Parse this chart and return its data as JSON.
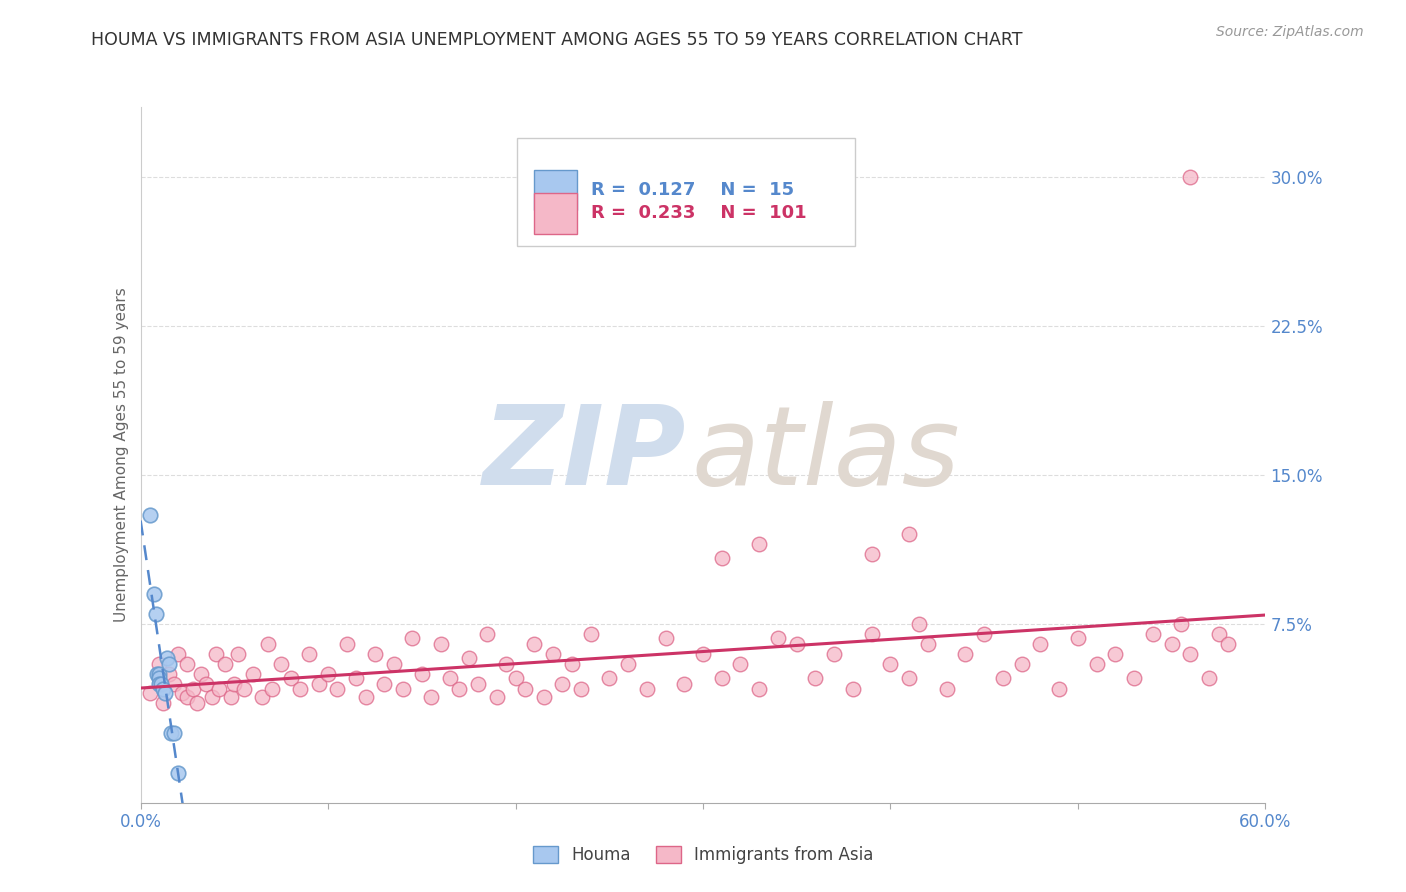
{
  "title": "HOUMA VS IMMIGRANTS FROM ASIA UNEMPLOYMENT AMONG AGES 55 TO 59 YEARS CORRELATION CHART",
  "source_text": "Source: ZipAtlas.com",
  "ylabel": "Unemployment Among Ages 55 to 59 years",
  "xlim": [
    0.0,
    0.6
  ],
  "ylim": [
    -0.015,
    0.335
  ],
  "xticks": [
    0.0,
    0.1,
    0.2,
    0.3,
    0.4,
    0.5,
    0.6
  ],
  "xticklabels": [
    "0.0%",
    "",
    "",
    "",
    "",
    "",
    "60.0%"
  ],
  "ytick_positions": [
    0.0,
    0.075,
    0.15,
    0.225,
    0.3
  ],
  "ytick_labels": [
    "",
    "7.5%",
    "15.0%",
    "22.5%",
    "30.0%"
  ],
  "houma_color": "#a8c8ef",
  "houma_edge_color": "#6699cc",
  "asia_color": "#f5b8c8",
  "asia_edge_color": "#dd6688",
  "houma_trend_color": "#5588cc",
  "asia_trend_color": "#cc3366",
  "grid_color": "#dddddd",
  "background_color": "#ffffff",
  "legend_R_houma": "R =  0.127",
  "legend_N_houma": "N =  15",
  "legend_R_asia": "R =  0.233",
  "legend_N_asia": "N =  101",
  "legend_label_houma": "Houma",
  "legend_label_asia": "Immigrants from Asia",
  "houma_x": [
    0.005,
    0.007,
    0.008,
    0.009,
    0.01,
    0.01,
    0.01,
    0.011,
    0.012,
    0.013,
    0.014,
    0.015,
    0.016,
    0.018,
    0.02
  ],
  "houma_y": [
    0.13,
    0.09,
    0.08,
    0.05,
    0.05,
    0.048,
    0.045,
    0.045,
    0.042,
    0.04,
    0.058,
    0.055,
    0.02,
    0.02,
    0.0
  ],
  "asia_x": [
    0.005,
    0.01,
    0.012,
    0.015,
    0.018,
    0.02,
    0.022,
    0.025,
    0.025,
    0.028,
    0.03,
    0.032,
    0.035,
    0.038,
    0.04,
    0.042,
    0.045,
    0.048,
    0.05,
    0.052,
    0.055,
    0.06,
    0.065,
    0.068,
    0.07,
    0.075,
    0.08,
    0.085,
    0.09,
    0.095,
    0.1,
    0.105,
    0.11,
    0.115,
    0.12,
    0.125,
    0.13,
    0.135,
    0.14,
    0.145,
    0.15,
    0.155,
    0.16,
    0.165,
    0.17,
    0.175,
    0.18,
    0.185,
    0.19,
    0.195,
    0.2,
    0.205,
    0.21,
    0.215,
    0.22,
    0.225,
    0.23,
    0.235,
    0.24,
    0.25,
    0.26,
    0.27,
    0.28,
    0.29,
    0.3,
    0.31,
    0.32,
    0.33,
    0.34,
    0.35,
    0.36,
    0.37,
    0.38,
    0.39,
    0.4,
    0.41,
    0.42,
    0.43,
    0.44,
    0.45,
    0.46,
    0.47,
    0.48,
    0.49,
    0.5,
    0.51,
    0.52,
    0.53,
    0.54,
    0.55,
    0.555,
    0.56,
    0.57,
    0.575,
    0.58,
    0.39,
    0.41,
    0.31,
    0.33,
    0.415,
    0.56
  ],
  "asia_y": [
    0.04,
    0.055,
    0.035,
    0.05,
    0.045,
    0.06,
    0.04,
    0.038,
    0.055,
    0.042,
    0.035,
    0.05,
    0.045,
    0.038,
    0.06,
    0.042,
    0.055,
    0.038,
    0.045,
    0.06,
    0.042,
    0.05,
    0.038,
    0.065,
    0.042,
    0.055,
    0.048,
    0.042,
    0.06,
    0.045,
    0.05,
    0.042,
    0.065,
    0.048,
    0.038,
    0.06,
    0.045,
    0.055,
    0.042,
    0.068,
    0.05,
    0.038,
    0.065,
    0.048,
    0.042,
    0.058,
    0.045,
    0.07,
    0.038,
    0.055,
    0.048,
    0.042,
    0.065,
    0.038,
    0.06,
    0.045,
    0.055,
    0.042,
    0.07,
    0.048,
    0.055,
    0.042,
    0.068,
    0.045,
    0.06,
    0.048,
    0.055,
    0.042,
    0.068,
    0.065,
    0.048,
    0.06,
    0.042,
    0.07,
    0.055,
    0.048,
    0.065,
    0.042,
    0.06,
    0.07,
    0.048,
    0.055,
    0.065,
    0.042,
    0.068,
    0.055,
    0.06,
    0.048,
    0.07,
    0.065,
    0.075,
    0.06,
    0.048,
    0.07,
    0.065,
    0.11,
    0.12,
    0.108,
    0.115,
    0.075,
    0.3
  ]
}
